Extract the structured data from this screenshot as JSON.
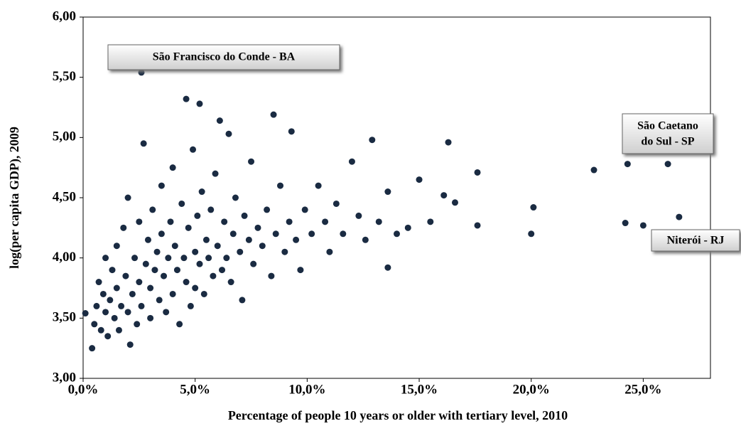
{
  "chart_data": {
    "type": "scatter",
    "xlabel": "Percentage of people 10 years or older with tertiary level, 2010",
    "ylabel": "log(per capita GDP), 2009",
    "xlim": [
      0,
      28
    ],
    "ylim": [
      3,
      6
    ],
    "xticks": [
      {
        "value": 0,
        "label": "0,0%"
      },
      {
        "value": 5,
        "label": "5,0%"
      },
      {
        "value": 10,
        "label": "10,0%"
      },
      {
        "value": 15,
        "label": "15,0%"
      },
      {
        "value": 20,
        "label": "20,0%"
      },
      {
        "value": 25,
        "label": "25,0%"
      }
    ],
    "yticks": [
      {
        "value": 3,
        "label": "3,00"
      },
      {
        "value": 3.5,
        "label": "3,50"
      },
      {
        "value": 4,
        "label": "4,00"
      },
      {
        "value": 4.5,
        "label": "4,50"
      },
      {
        "value": 5,
        "label": "5,00"
      },
      {
        "value": 5.5,
        "label": "5,50"
      },
      {
        "value": 6,
        "label": "6,00"
      }
    ],
    "grid": false,
    "annotations": [
      {
        "text": "São Francisco do Conde - BA"
      },
      {
        "lines": [
          "São Caetano",
          "do Sul - SP"
        ]
      },
      {
        "text": "Niterói - RJ"
      }
    ],
    "series": [
      {
        "color": "#1a2b42",
        "x": [
          0.1,
          0.4,
          0.5,
          0.6,
          0.7,
          0.8,
          0.9,
          1.0,
          1.0,
          1.1,
          1.2,
          1.3,
          1.4,
          1.5,
          1.5,
          1.6,
          1.7,
          1.8,
          1.9,
          2.0,
          2.0,
          2.1,
          2.2,
          2.3,
          2.4,
          2.5,
          2.5,
          2.6,
          2.6,
          2.7,
          2.8,
          2.9,
          3.0,
          3.0,
          3.1,
          3.2,
          3.3,
          3.4,
          3.5,
          3.5,
          3.6,
          3.7,
          3.8,
          3.9,
          4.0,
          4.0,
          4.1,
          4.2,
          4.3,
          4.4,
          4.5,
          4.6,
          4.6,
          4.7,
          4.8,
          4.9,
          5.0,
          5.0,
          5.1,
          5.2,
          5.2,
          5.3,
          5.4,
          5.5,
          5.6,
          5.7,
          5.8,
          5.9,
          6.0,
          6.1,
          6.2,
          6.3,
          6.4,
          6.5,
          6.6,
          6.7,
          6.8,
          7.0,
          7.1,
          7.2,
          7.4,
          7.5,
          7.6,
          7.8,
          8.0,
          8.2,
          8.4,
          8.5,
          8.6,
          8.8,
          9.0,
          9.2,
          9.3,
          9.5,
          9.7,
          9.9,
          10.2,
          10.5,
          10.8,
          11.0,
          11.3,
          11.6,
          12.0,
          12.3,
          12.6,
          12.9,
          13.2,
          13.6,
          13.6,
          14.0,
          14.5,
          15.0,
          15.5,
          16.1,
          16.3,
          16.6,
          17.6,
          17.6,
          20.0,
          20.1,
          22.8,
          24.2,
          24.3,
          25.0,
          26.1,
          26.6
        ],
        "values": [
          3.54,
          3.25,
          3.45,
          3.6,
          3.8,
          3.4,
          3.7,
          3.55,
          4.0,
          3.35,
          3.65,
          3.9,
          3.5,
          4.1,
          3.75,
          3.4,
          3.6,
          4.25,
          3.85,
          3.55,
          4.5,
          3.28,
          3.7,
          4.0,
          3.45,
          4.3,
          3.8,
          5.54,
          3.6,
          4.95,
          3.95,
          4.15,
          3.5,
          3.75,
          4.4,
          3.9,
          4.05,
          3.65,
          4.6,
          4.2,
          3.85,
          3.55,
          4.0,
          4.3,
          3.7,
          4.75,
          4.1,
          3.9,
          3.45,
          4.45,
          4.0,
          5.32,
          3.8,
          4.25,
          3.6,
          4.9,
          4.05,
          3.75,
          4.35,
          5.28,
          3.95,
          4.55,
          3.7,
          4.15,
          4.0,
          4.4,
          3.85,
          4.7,
          4.1,
          5.14,
          3.9,
          4.3,
          4.0,
          5.03,
          3.8,
          4.2,
          4.5,
          4.05,
          3.65,
          4.35,
          4.15,
          4.8,
          3.95,
          4.25,
          4.1,
          4.4,
          3.85,
          5.19,
          4.2,
          4.6,
          4.05,
          4.3,
          5.05,
          4.15,
          3.9,
          4.4,
          4.2,
          4.6,
          4.3,
          4.05,
          4.45,
          4.2,
          4.8,
          4.35,
          4.15,
          4.98,
          4.3,
          4.55,
          3.92,
          4.2,
          4.25,
          4.65,
          4.3,
          4.52,
          4.96,
          4.46,
          4.71,
          4.27,
          4.2,
          4.42,
          4.73,
          4.29,
          4.78,
          4.27,
          4.78,
          4.34
        ]
      }
    ]
  }
}
